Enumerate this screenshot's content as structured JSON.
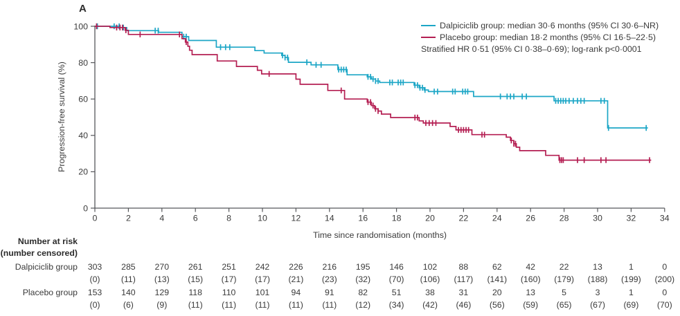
{
  "panel_label": "A",
  "legend": {
    "items": [
      {
        "label": "Dalpiciclib group: median 30·6 months (95% CI 30·6–NR)",
        "color": "#1ca6c6"
      },
      {
        "label": "Placebo group: median 18·2 months (95% CI 16·5–22·5)",
        "color": "#b41e52"
      }
    ],
    "note": "Stratified HR 0·51 (95% CI 0·38–0·69); log-rank p<0·0001"
  },
  "chart_data": {
    "type": "line",
    "subtype": "kaplan-meier-step",
    "title": "",
    "xlabel": "Time since randomisation (months)",
    "ylabel": "Progression-free survival (%)",
    "xlim": [
      0,
      34
    ],
    "ylim": [
      0,
      100
    ],
    "x_ticks": [
      0,
      2,
      4,
      6,
      8,
      10,
      12,
      14,
      16,
      18,
      20,
      22,
      24,
      26,
      28,
      30,
      32,
      34
    ],
    "y_ticks": [
      0,
      20,
      40,
      60,
      80,
      100
    ],
    "grid": false,
    "legend_position": "top-right",
    "axis_color": "#55565a",
    "series": [
      {
        "name": "Dalpiciclib group",
        "color": "#1ca6c6",
        "steps": [
          [
            0,
            100
          ],
          [
            1.5,
            99.3
          ],
          [
            1.9,
            97.6
          ],
          [
            3.8,
            96.7
          ],
          [
            5.2,
            94.3
          ],
          [
            5.6,
            92.2
          ],
          [
            7.25,
            88.5
          ],
          [
            9.55,
            86.6
          ],
          [
            10.1,
            85.3
          ],
          [
            11.15,
            84.0
          ],
          [
            11.35,
            82.8
          ],
          [
            11.55,
            80.2
          ],
          [
            12.9,
            78.8
          ],
          [
            14.5,
            76.2
          ],
          [
            15.05,
            73.3
          ],
          [
            16.25,
            72.2
          ],
          [
            16.5,
            71.0
          ],
          [
            16.75,
            69.9
          ],
          [
            17.0,
            69.1
          ],
          [
            19.05,
            67.6
          ],
          [
            19.35,
            66.2
          ],
          [
            19.65,
            65.0
          ],
          [
            19.9,
            64.1
          ],
          [
            22.6,
            61.4
          ],
          [
            27.4,
            59.0
          ],
          [
            30.6,
            44.1
          ]
        ],
        "end_month": 33.0,
        "censor_months": [
          0.15,
          1.15,
          1.45,
          1.7,
          3.6,
          3.78,
          5.3,
          5.45,
          7.5,
          7.8,
          8.05,
          11.2,
          11.35,
          11.5,
          12.65,
          13.2,
          13.5,
          14.55,
          14.7,
          14.85,
          15.0,
          16.3,
          16.45,
          16.6,
          16.75,
          16.9,
          17.6,
          17.75,
          18.1,
          18.25,
          18.4,
          19.1,
          19.25,
          19.4,
          19.55,
          19.7,
          20.25,
          20.45,
          21.35,
          21.5,
          21.95,
          22.1,
          22.25,
          24.2,
          24.6,
          24.8,
          25.0,
          25.5,
          25.75,
          27.5,
          27.65,
          27.8,
          27.95,
          28.1,
          28.3,
          28.55,
          28.8,
          29.0,
          29.2,
          30.2,
          30.4,
          30.65,
          32.9
        ]
      },
      {
        "name": "Placebo group",
        "color": "#b41e52",
        "steps": [
          [
            0,
            100
          ],
          [
            0.9,
            99.3
          ],
          [
            1.8,
            97.8
          ],
          [
            2.0,
            95.5
          ],
          [
            5.2,
            93.2
          ],
          [
            5.4,
            91.3
          ],
          [
            5.55,
            89.0
          ],
          [
            5.65,
            86.8
          ],
          [
            5.8,
            84.4
          ],
          [
            7.3,
            80.9
          ],
          [
            8.45,
            77.9
          ],
          [
            9.7,
            75.8
          ],
          [
            9.95,
            73.8
          ],
          [
            12.0,
            70.9
          ],
          [
            12.25,
            68.1
          ],
          [
            13.9,
            64.7
          ],
          [
            14.9,
            60.0
          ],
          [
            16.25,
            58.3
          ],
          [
            16.5,
            56.4
          ],
          [
            16.7,
            54.6
          ],
          [
            16.9,
            53.4
          ],
          [
            17.1,
            51.7
          ],
          [
            17.65,
            49.8
          ],
          [
            19.35,
            48.0
          ],
          [
            19.6,
            46.8
          ],
          [
            21.2,
            44.9
          ],
          [
            21.55,
            43.0
          ],
          [
            22.5,
            40.4
          ],
          [
            24.55,
            39.0
          ],
          [
            24.8,
            37.2
          ],
          [
            25.0,
            35.4
          ],
          [
            25.15,
            33.5
          ],
          [
            25.35,
            31.6
          ],
          [
            26.9,
            29.0
          ],
          [
            27.7,
            26.4
          ]
        ],
        "end_month": 33.2,
        "censor_months": [
          0.1,
          1.3,
          1.5,
          1.65,
          1.85,
          2.7,
          5.05,
          5.45,
          10.4,
          14.7,
          16.3,
          16.45,
          16.6,
          16.75,
          16.9,
          19.1,
          19.25,
          19.75,
          19.95,
          20.15,
          20.35,
          21.7,
          21.85,
          22.0,
          22.15,
          22.3,
          23.1,
          23.25,
          24.85,
          25.0,
          25.1,
          27.75,
          27.85,
          27.95,
          28.8,
          29.2,
          30.2,
          30.5,
          33.1
        ]
      }
    ]
  },
  "risk_table": {
    "header_line1": "Number at risk",
    "header_line2": "(number censored)",
    "rows": [
      {
        "label": "Dalpiciclib group",
        "n": [
          "303",
          "285",
          "270",
          "261",
          "251",
          "242",
          "226",
          "216",
          "195",
          "146",
          "102",
          "88",
          "62",
          "42",
          "22",
          "13",
          "1",
          "0"
        ],
        "censored": [
          "(0)",
          "(11)",
          "(13)",
          "(15)",
          "(17)",
          "(17)",
          "(21)",
          "(23)",
          "(32)",
          "(70)",
          "(106)",
          "(117)",
          "(141)",
          "(160)",
          "(179)",
          "(188)",
          "(199)",
          "(200)"
        ]
      },
      {
        "label": "Placebo group",
        "n": [
          "153",
          "140",
          "129",
          "118",
          "110",
          "101",
          "94",
          "91",
          "82",
          "51",
          "38",
          "31",
          "20",
          "13",
          "5",
          "3",
          "1",
          "0"
        ],
        "censored": [
          "(0)",
          "(6)",
          "(9)",
          "(11)",
          "(11)",
          "(11)",
          "(11)",
          "(11)",
          "(12)",
          "(34)",
          "(42)",
          "(46)",
          "(56)",
          "(59)",
          "(65)",
          "(67)",
          "(69)",
          "(70)"
        ]
      }
    ]
  }
}
